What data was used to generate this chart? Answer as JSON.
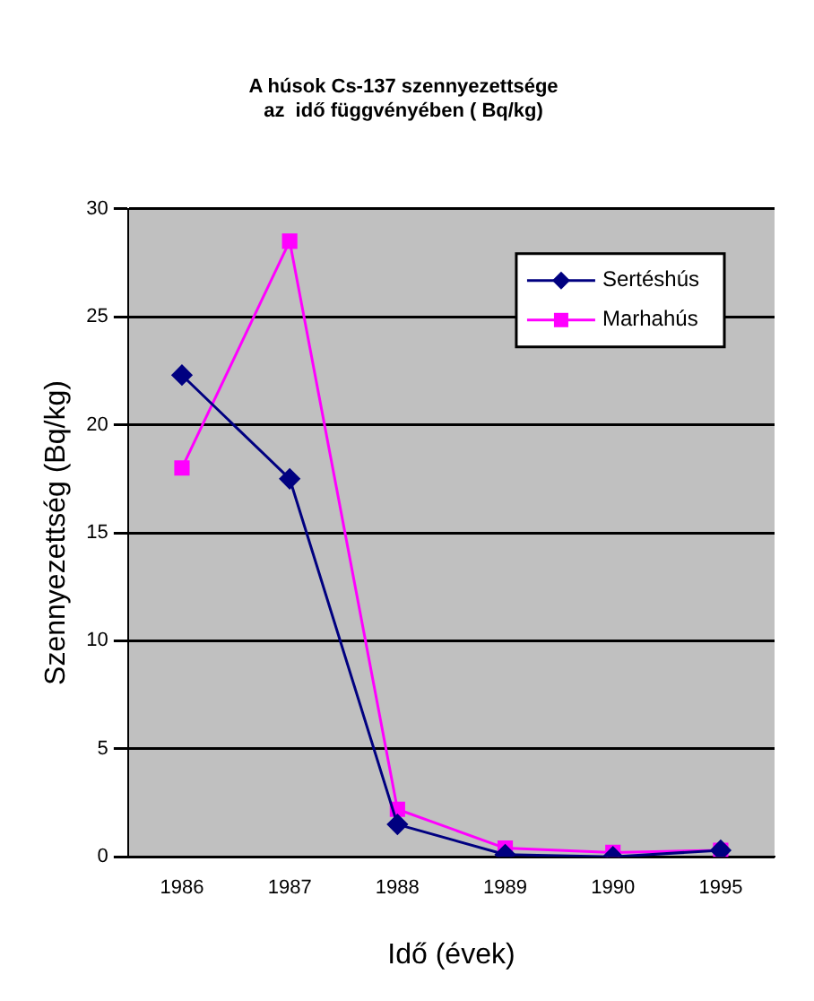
{
  "chart_data": {
    "type": "line",
    "title": "A húsok Cs-137 szennyezettsége\naz  idő függvényében ( Bq/kg)",
    "xlabel": "Idő (évek)",
    "ylabel": "Szennyezettség (Bq/kg)",
    "categories": [
      "1986",
      "1987",
      "1988",
      "1989",
      "1990",
      "1995"
    ],
    "series": [
      {
        "name": "Sertéshús",
        "color": "#000080",
        "marker": "diamond",
        "values": [
          22.3,
          17.5,
          1.5,
          0.1,
          0,
          0.3
        ]
      },
      {
        "name": "Marhahús",
        "color": "#ff00ff",
        "marker": "square",
        "values": [
          18,
          28.5,
          2.2,
          0.4,
          0.2,
          0.3
        ]
      }
    ],
    "ylim": [
      0,
      30
    ],
    "yticks": [
      0,
      5,
      10,
      15,
      20,
      25,
      30
    ],
    "grid": "y",
    "legend": "top right",
    "line_style": "solid"
  }
}
